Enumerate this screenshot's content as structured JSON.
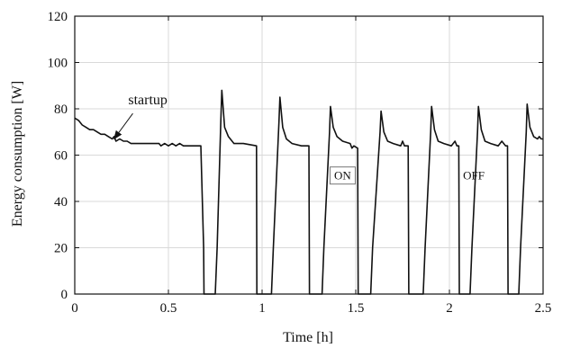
{
  "chart_data": {
    "type": "line",
    "title": "",
    "xlabel": "Time [h]",
    "ylabel": "Energy consumption [W]",
    "xlim": [
      0,
      2.5
    ],
    "ylim": [
      0,
      120
    ],
    "x_ticks": [
      0,
      0.5,
      1,
      1.5,
      2,
      2.5
    ],
    "x_tick_labels": [
      "0",
      "0.5",
      "1",
      "1.5",
      "2",
      "2.5"
    ],
    "y_ticks": [
      0,
      20,
      40,
      60,
      80,
      100,
      120
    ],
    "y_tick_labels": [
      "0",
      "20",
      "40",
      "60",
      "80",
      "100",
      "120"
    ],
    "grid": true,
    "series": [
      {
        "x": [
          0,
          0.02,
          0.04,
          0.06,
          0.08,
          0.1,
          0.12,
          0.14,
          0.16,
          0.18,
          0.2,
          0.21,
          0.22,
          0.24,
          0.26,
          0.28,
          0.3,
          0.4,
          0.45,
          0.46,
          0.48,
          0.5,
          0.52,
          0.54,
          0.56,
          0.58,
          0.6,
          0.62,
          0.66,
          0.673,
          0.688,
          0.69,
          0.75,
          0.76,
          0.78,
          0.785,
          0.8,
          0.82,
          0.85,
          0.9,
          0.97,
          0.972,
          1.0,
          1.05,
          1.06,
          1.09,
          1.095,
          1.11,
          1.13,
          1.16,
          1.21,
          1.25,
          1.253,
          1.32,
          1.33,
          1.36,
          1.365,
          1.38,
          1.4,
          1.43,
          1.47,
          1.48,
          1.49,
          1.51,
          1.513,
          1.58,
          1.59,
          1.63,
          1.635,
          1.65,
          1.67,
          1.7,
          1.74,
          1.75,
          1.76,
          1.78,
          1.783,
          1.86,
          1.87,
          1.9,
          1.905,
          1.92,
          1.94,
          1.97,
          2.01,
          2.03,
          2.04,
          2.05,
          2.053,
          2.11,
          2.12,
          2.15,
          2.155,
          2.17,
          2.19,
          2.22,
          2.26,
          2.28,
          2.3,
          2.31,
          2.313,
          2.37,
          2.38,
          2.41,
          2.415,
          2.43,
          2.45,
          2.47,
          2.48,
          2.49,
          2.5
        ],
        "y": [
          76,
          75,
          73,
          72,
          71,
          71,
          70,
          69,
          69,
          68,
          67,
          68,
          66,
          67,
          66,
          66,
          65,
          65,
          65,
          64,
          65,
          64,
          65,
          64,
          65,
          64,
          64,
          64,
          64,
          64,
          20,
          0,
          0,
          20,
          75,
          88,
          72,
          68,
          65,
          65,
          64,
          0,
          0,
          0,
          20,
          74,
          85,
          72,
          67,
          65,
          64,
          64,
          0,
          0,
          20,
          70,
          81,
          72,
          68,
          66,
          65,
          63,
          64,
          63,
          0,
          0,
          20,
          70,
          79,
          70,
          66,
          65,
          64,
          66,
          64,
          64,
          0,
          0,
          20,
          70,
          81,
          71,
          66,
          65,
          64,
          66,
          64,
          64,
          0,
          0,
          20,
          70,
          81,
          71,
          66,
          65,
          64,
          66,
          64,
          64,
          0,
          0,
          20,
          70,
          82,
          72,
          68,
          67,
          68,
          67,
          67
        ]
      }
    ],
    "annotations": [
      {
        "text": "startup",
        "arrow_from": [
          0.31,
          78
        ],
        "arrow_to": [
          0.21,
          67
        ],
        "text_at": [
          0.39,
          82
        ]
      },
      {
        "text": "ON",
        "box": true,
        "at": [
          1.43,
          51
        ]
      },
      {
        "text": "OFF",
        "box": false,
        "at": [
          2.13,
          51
        ]
      }
    ]
  }
}
